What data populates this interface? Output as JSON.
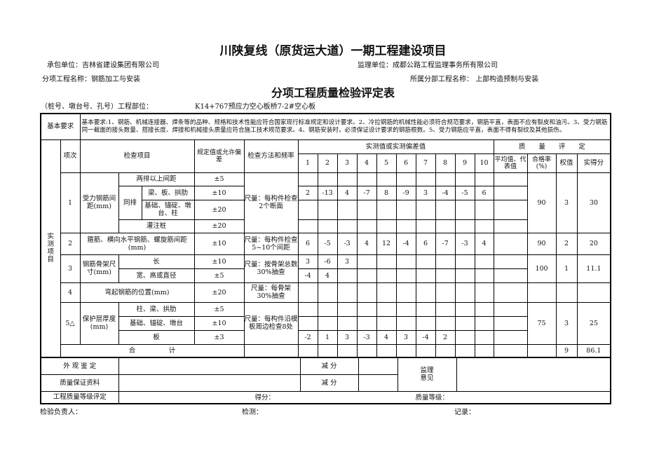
{
  "project_title": "川陕复线（原货运大道）一期工程建设项目",
  "contractor": {
    "label": "承包单位：",
    "value": "吉林省建设集团有限公司"
  },
  "supervisor": {
    "label": "监理单位：",
    "value": "成都公路工程监理事务所有限公司"
  },
  "subitem": {
    "label": "分项工程名称：",
    "value": "钢筋加工与安装"
  },
  "parent": {
    "label": "所属分部工程名称：",
    "value": "上部构造预制与安装"
  },
  "form_title": "分项工程质量检验评定表",
  "location": {
    "label": "（桩号、墩台号、孔号）工程部位：",
    "value": "K14+767预应力空心板桥7-2#空心板"
  },
  "basic_requirements": {
    "label": "基本要求",
    "text": "基本要求:1、钢筋、机械连接器、焊条等的品种、规格和技术性能应符合国家现行标准规定和设计要求。2、冷拉钢筋的机械性能必须符合规范要求，钢筋平直，表面不应有裂皮和油污。3、受力钢筋同一截面的接头数量、搭接长度、焊接和机械接头质量应符合施工技术规范要求。4、钢筋安装时，必须保证设计要求的钢筋根数。5、受力钢筋应平直，表面不得有裂纹及其他损伤。"
  },
  "table": {
    "side_label": [
      "实",
      "测",
      "项",
      "目"
    ],
    "headers": {
      "no": "项次",
      "item": "检查项目",
      "tolerance": "规定值或允许偏差",
      "method": "检查方法和频率",
      "measured": "实测值或实测偏差值",
      "measured_cols": [
        "1",
        "2",
        "3",
        "4",
        "5",
        "6",
        "7",
        "8",
        "9",
        "10"
      ],
      "quality": "质　　量　　评　　定",
      "avg": "平均值、代表值",
      "pass_rate": "合格率(%)",
      "weight": "权值",
      "score": "实得分"
    },
    "items": [
      {
        "no": "1",
        "name": "受力钢筋间距(mm)",
        "method": "尺量：每构件检查2个断面",
        "pass_rate": "90",
        "weight": "3",
        "score": "30",
        "sub": [
          {
            "name": "两排以上间距",
            "tol": "±5",
            "values": []
          },
          {
            "group": "同排",
            "name": "梁、板、拱肋",
            "tol": "±10",
            "values": [
              "2",
              "-13",
              "4",
              "-7",
              "8",
              "-9",
              "3",
              "-4",
              "-5",
              "6"
            ]
          },
          {
            "group": "同排",
            "name": "基础、锚碇、墩台、柱",
            "tol": "±20",
            "values": []
          },
          {
            "name": "灌注桩",
            "tol": "±20",
            "values": []
          }
        ]
      },
      {
        "no": "2",
        "name": "箍筋、横向水平钢筋、螺旋筋间距(mm)",
        "method": "尺量：每构件检查5~10个间距",
        "pass_rate": "90",
        "weight": "2",
        "score": "20",
        "sub": [
          {
            "tol": "±10",
            "values": [
              "6",
              "-5",
              "-3",
              "4",
              "12",
              "-4",
              "6",
              "-7",
              "-3",
              "4"
            ]
          }
        ]
      },
      {
        "no": "3",
        "name": "钢筋骨架尺寸(mm)",
        "method": "尺量：按骨架总数30%抽查",
        "pass_rate": "100",
        "weight": "1",
        "score": "11.1",
        "sub": [
          {
            "name": "长",
            "tol": "±10",
            "values": [
              "3",
              "-6",
              "3"
            ]
          },
          {
            "name": "宽、高或直径",
            "tol": "±5",
            "values": [
              "-4",
              "4"
            ]
          }
        ]
      },
      {
        "no": "4",
        "name": "弯起钢筋的位置(mm)",
        "method": "尺量：每骨架30%抽查",
        "pass_rate": "",
        "weight": "",
        "score": "",
        "sub": [
          {
            "tol": "±20",
            "values": []
          }
        ]
      },
      {
        "no": "5△",
        "name": "保护层厚度(mm)",
        "method": "尺量：每构件沿模板周边检查8处",
        "pass_rate": "75",
        "weight": "3",
        "score": "25",
        "sub": [
          {
            "name": "柱、梁、拱肋",
            "tol": "±5",
            "values": []
          },
          {
            "name": "基础、锚碇、墩台",
            "tol": "±10",
            "values": []
          },
          {
            "name": "板",
            "tol": "±3",
            "values": [
              "-2",
              "1",
              "3",
              "-3",
              "4",
              "3",
              "-4",
              "2"
            ]
          }
        ]
      }
    ],
    "total": {
      "label": "合　　　　　计",
      "weight": "9",
      "score": "86.1"
    }
  },
  "bottom": {
    "appearance": "外 观 鉴 定",
    "quality_docs": "质量保证资料",
    "deduct": "减 分",
    "supervisor_opinion": "监理意见",
    "grade_label": "工程质量等级评定",
    "score_label": "得分：",
    "grade_value_label": "质量等级："
  },
  "footer": {
    "inspector": "检验负责人：",
    "tester": "检测：",
    "recorder": "记录："
  }
}
